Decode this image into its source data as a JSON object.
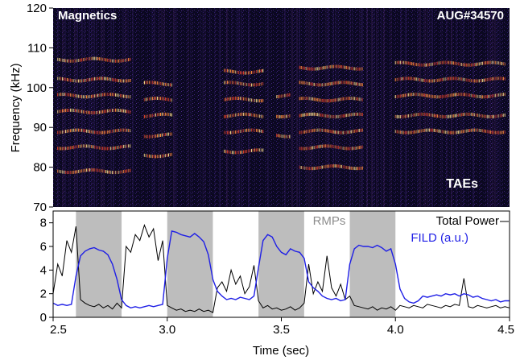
{
  "chart_data": [
    {
      "type": "heatmap",
      "title": "Magnetics",
      "shot_label": "AUG#34570",
      "annotation": "TAEs",
      "ylabel": "Frequency (kHz)",
      "xlim": [
        2.5,
        4.5
      ],
      "ylim": [
        70,
        120
      ],
      "yticks": [
        70,
        80,
        90,
        100,
        110,
        120
      ],
      "mode_bands": [
        {
          "t_start": 2.52,
          "t_end": 2.84,
          "center_f": [
            79,
            85,
            89,
            94,
            98,
            102,
            107
          ]
        },
        {
          "t_start": 2.9,
          "t_end": 3.02,
          "center_f": [
            83,
            88,
            93,
            97,
            101
          ]
        },
        {
          "t_start": 3.25,
          "t_end": 3.42,
          "center_f": [
            84,
            89,
            93,
            97,
            101,
            104
          ]
        },
        {
          "t_start": 3.48,
          "t_end": 3.54,
          "center_f": [
            88,
            93,
            98
          ]
        },
        {
          "t_start": 3.58,
          "t_end": 3.86,
          "center_f": [
            80,
            85,
            89,
            93,
            97,
            101,
            105
          ]
        },
        {
          "t_start": 4.0,
          "t_end": 4.48,
          "center_f": [
            89,
            93,
            98,
            102,
            106
          ]
        }
      ]
    },
    {
      "type": "line",
      "xlabel": "Time (sec)",
      "ylabel": "",
      "xlim": [
        2.5,
        4.5
      ],
      "ylim": [
        0,
        9
      ],
      "xticks": [
        2.5,
        3.0,
        3.5,
        4.0,
        4.5
      ],
      "xtick_labels": [
        "2.5",
        "3.0",
        "3.5",
        "4.0",
        "4.5"
      ],
      "yticks": [
        0,
        2,
        4,
        6,
        8
      ],
      "shaded_label": "RMPs",
      "shaded_intervals": [
        [
          2.6,
          2.8
        ],
        [
          3.0,
          3.2
        ],
        [
          3.4,
          3.6
        ],
        [
          3.8,
          4.0
        ]
      ],
      "series": [
        {
          "name": "Total Power",
          "color": "#000000",
          "x": [
            2.5,
            2.52,
            2.54,
            2.56,
            2.58,
            2.6,
            2.62,
            2.64,
            2.66,
            2.68,
            2.7,
            2.72,
            2.74,
            2.76,
            2.78,
            2.8,
            2.82,
            2.84,
            2.86,
            2.88,
            2.9,
            2.92,
            2.94,
            2.96,
            2.98,
            3.0,
            3.02,
            3.04,
            3.06,
            3.08,
            3.1,
            3.12,
            3.14,
            3.16,
            3.18,
            3.2,
            3.22,
            3.24,
            3.26,
            3.28,
            3.3,
            3.32,
            3.34,
            3.36,
            3.38,
            3.4,
            3.42,
            3.44,
            3.46,
            3.48,
            3.5,
            3.52,
            3.54,
            3.56,
            3.58,
            3.6,
            3.62,
            3.64,
            3.66,
            3.68,
            3.7,
            3.72,
            3.74,
            3.76,
            3.78,
            3.8,
            3.82,
            3.84,
            3.86,
            3.88,
            3.9,
            3.92,
            3.94,
            3.96,
            3.98,
            4.0,
            4.02,
            4.04,
            4.06,
            4.08,
            4.1,
            4.12,
            4.14,
            4.16,
            4.18,
            4.2,
            4.22,
            4.24,
            4.26,
            4.28,
            4.3,
            4.32,
            4.34,
            4.36,
            4.38,
            4.4,
            4.42,
            4.44,
            4.46,
            4.48,
            4.5
          ],
          "y": [
            2.0,
            4.5,
            3.5,
            6.5,
            5.5,
            7.7,
            1.5,
            1.2,
            1.0,
            0.9,
            1.1,
            0.8,
            1.0,
            0.7,
            1.2,
            0.8,
            6.0,
            5.5,
            7.0,
            6.5,
            7.8,
            6.8,
            7.5,
            4.8,
            6.5,
            1.0,
            0.8,
            0.6,
            0.7,
            0.5,
            0.6,
            0.5,
            0.7,
            0.5,
            0.6,
            0.4,
            2.5,
            3.0,
            2.2,
            4.0,
            2.8,
            3.5,
            2.0,
            2.6,
            4.4,
            1.4,
            0.8,
            1.0,
            0.7,
            0.8,
            0.6,
            0.7,
            0.9,
            0.6,
            0.8,
            1.2,
            4.5,
            2.0,
            3.0,
            2.2,
            5.2,
            2.5,
            1.8,
            2.8,
            1.5,
            1.8,
            1.0,
            0.9,
            0.8,
            0.7,
            0.9,
            0.6,
            0.8,
            0.7,
            0.9,
            0.6,
            1.0,
            0.9,
            0.8,
            1.0,
            0.9,
            0.8,
            1.1,
            1.0,
            0.9,
            0.8,
            1.0,
            0.9,
            1.1,
            1.0,
            3.3,
            0.9,
            0.8,
            1.0,
            0.9,
            0.8,
            0.9,
            1.0,
            0.8,
            0.9,
            0.8
          ]
        },
        {
          "name": "FILD (a.u.)",
          "color": "#1f1fe6",
          "x": [
            2.5,
            2.52,
            2.54,
            2.56,
            2.58,
            2.6,
            2.62,
            2.64,
            2.66,
            2.68,
            2.7,
            2.72,
            2.74,
            2.76,
            2.78,
            2.8,
            2.82,
            2.84,
            2.86,
            2.88,
            2.9,
            2.92,
            2.94,
            2.96,
            2.98,
            3.0,
            3.02,
            3.04,
            3.06,
            3.08,
            3.1,
            3.12,
            3.14,
            3.16,
            3.18,
            3.2,
            3.22,
            3.24,
            3.26,
            3.28,
            3.3,
            3.32,
            3.34,
            3.36,
            3.38,
            3.4,
            3.42,
            3.44,
            3.46,
            3.48,
            3.5,
            3.52,
            3.54,
            3.56,
            3.58,
            3.6,
            3.62,
            3.64,
            3.66,
            3.68,
            3.7,
            3.72,
            3.74,
            3.76,
            3.78,
            3.8,
            3.82,
            3.84,
            3.86,
            3.88,
            3.9,
            3.92,
            3.94,
            3.96,
            3.98,
            4.0,
            4.02,
            4.04,
            4.06,
            4.08,
            4.1,
            4.12,
            4.14,
            4.16,
            4.18,
            4.2,
            4.22,
            4.24,
            4.26,
            4.28,
            4.3,
            4.32,
            4.34,
            4.36,
            4.38,
            4.4,
            4.42,
            4.44,
            4.46,
            4.48,
            4.5
          ],
          "y": [
            1.2,
            1.0,
            1.1,
            1.0,
            1.1,
            3.5,
            5.2,
            5.6,
            5.8,
            5.9,
            5.7,
            5.6,
            5.3,
            4.5,
            3.2,
            1.5,
            1.0,
            0.8,
            0.9,
            0.8,
            0.9,
            1.0,
            0.9,
            1.0,
            1.1,
            5.0,
            7.3,
            7.2,
            7.0,
            6.9,
            6.8,
            7.1,
            6.8,
            6.4,
            5.3,
            3.2,
            2.2,
            1.8,
            1.5,
            1.6,
            1.5,
            1.7,
            1.6,
            1.5,
            1.8,
            4.2,
            6.5,
            7.0,
            6.8,
            6.0,
            5.5,
            5.3,
            5.8,
            5.6,
            5.5,
            5.0,
            3.0,
            2.5,
            2.2,
            1.8,
            1.6,
            1.5,
            1.6,
            1.4,
            1.5,
            4.5,
            5.8,
            6.1,
            6.0,
            6.0,
            5.9,
            6.1,
            5.9,
            5.6,
            5.8,
            4.5,
            2.4,
            1.6,
            1.3,
            1.2,
            1.4,
            1.8,
            1.7,
            1.8,
            1.9,
            1.8,
            2.0,
            1.9,
            2.0,
            1.8,
            2.0,
            1.9,
            1.7,
            1.8,
            1.6,
            1.5,
            1.4,
            1.5,
            1.3,
            1.4,
            1.4
          ]
        }
      ]
    }
  ]
}
